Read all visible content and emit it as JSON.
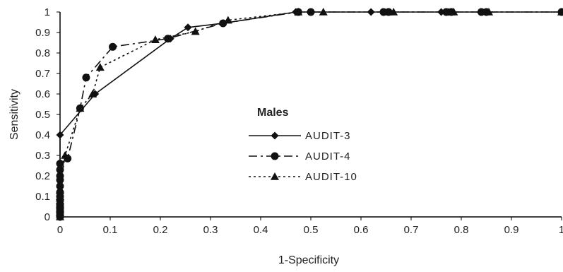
{
  "chart_data": {
    "type": "line",
    "title": "",
    "xlabel": "1-Specificity",
    "ylabel": "Sensitivity",
    "xlim": [
      0,
      1
    ],
    "ylim": [
      0,
      1
    ],
    "x_ticks": [
      "0",
      "0.1",
      "0.2",
      "0.3",
      "0.4",
      "0.5",
      "0.6",
      "0.7",
      "0.8",
      "0.9",
      "1"
    ],
    "y_ticks": [
      "0",
      "0.1",
      "0.2",
      "0.3",
      "0.4",
      "0.5",
      "0.6",
      "0.7",
      "0.8",
      "0.9",
      "1"
    ],
    "grid": false,
    "legend": {
      "title": "Males",
      "position": "center-left"
    },
    "series": [
      {
        "name": "AUDIT-3",
        "marker": "diamond",
        "dash": "solid",
        "points": [
          [
            0,
            0
          ],
          [
            0,
            0.4
          ],
          [
            0.07,
            0.6
          ],
          [
            0.22,
            0.87
          ],
          [
            0.255,
            0.925
          ],
          [
            0.325,
            0.945
          ],
          [
            0.47,
            1
          ],
          [
            0.5,
            1
          ],
          [
            0.62,
            1
          ],
          [
            0.645,
            1
          ],
          [
            0.76,
            1
          ],
          [
            0.775,
            1
          ],
          [
            0.84,
            1
          ],
          [
            0.85,
            1
          ],
          [
            1,
            1
          ]
        ]
      },
      {
        "name": "AUDIT-4",
        "marker": "circle",
        "dash": "long-dash",
        "points": [
          [
            0,
            0
          ],
          [
            0,
            0.01
          ],
          [
            0,
            0.02
          ],
          [
            0,
            0.03
          ],
          [
            0,
            0.04
          ],
          [
            0,
            0.05
          ],
          [
            0,
            0.06
          ],
          [
            0,
            0.08
          ],
          [
            0,
            0.1
          ],
          [
            0,
            0.12
          ],
          [
            0,
            0.15
          ],
          [
            0,
            0.18
          ],
          [
            0,
            0.2
          ],
          [
            0,
            0.23
          ],
          [
            0,
            0.26
          ],
          [
            0.015,
            0.285
          ],
          [
            0.04,
            0.53
          ],
          [
            0.052,
            0.68
          ],
          [
            0.105,
            0.83
          ],
          [
            0.215,
            0.87
          ],
          [
            0.325,
            0.945
          ],
          [
            0.475,
            1
          ],
          [
            0.5,
            1
          ],
          [
            0.645,
            1
          ],
          [
            0.655,
            1
          ],
          [
            0.77,
            1
          ],
          [
            0.78,
            1
          ],
          [
            0.84,
            1
          ],
          [
            0.85,
            1
          ],
          [
            1,
            1
          ]
        ]
      },
      {
        "name": "AUDIT-10",
        "marker": "triangle",
        "dash": "dotted",
        "points": [
          [
            0,
            0
          ],
          [
            0,
            0.02
          ],
          [
            0,
            0.04
          ],
          [
            0,
            0.06
          ],
          [
            0,
            0.08
          ],
          [
            0,
            0.1
          ],
          [
            0,
            0.13
          ],
          [
            0.01,
            0.3
          ],
          [
            0.04,
            0.53
          ],
          [
            0.065,
            0.6
          ],
          [
            0.08,
            0.73
          ],
          [
            0.19,
            0.865
          ],
          [
            0.27,
            0.905
          ],
          [
            0.335,
            0.96
          ],
          [
            0.475,
            1
          ],
          [
            0.525,
            1
          ],
          [
            0.655,
            1
          ],
          [
            0.665,
            1
          ],
          [
            0.78,
            1
          ],
          [
            0.785,
            1
          ],
          [
            0.855,
            1
          ],
          [
            1,
            1
          ]
        ]
      }
    ]
  }
}
